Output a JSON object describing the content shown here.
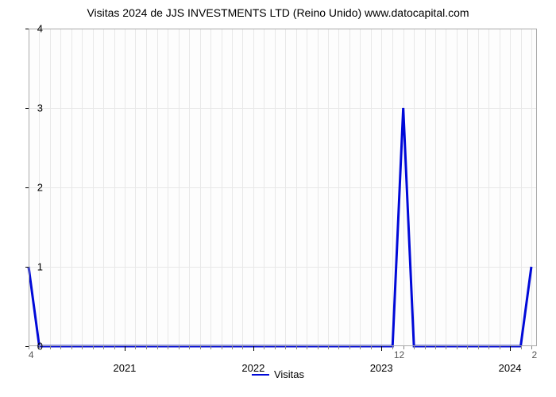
{
  "chart": {
    "type": "line",
    "title": "Visitas 2024 de JJS INVESTMENTS LTD (Reino Unido) www.datocapital.com",
    "title_fontsize": 14,
    "title_color": "#000000",
    "background_color": "#ffffff",
    "plot_background_color": "#fdfdfd",
    "grid_color": "#e8e8e8",
    "border_color": "#aaaaaa",
    "line_color": "#0009d8",
    "line_width": 3,
    "y_axis": {
      "min": 0,
      "max": 4,
      "ticks": [
        0,
        1,
        2,
        3,
        4
      ],
      "tick_fontsize": 13,
      "tick_color": "#000000"
    },
    "x_axis": {
      "minor_labels": [
        "4",
        "12",
        "2"
      ],
      "minor_positions_pct": [
        0.5,
        72.9,
        99.5
      ],
      "major_labels": [
        "2021",
        "2022",
        "2023",
        "2024"
      ],
      "major_positions_pct": [
        18.9,
        44.2,
        69.4,
        94.7
      ],
      "month_grid_positions_pct": [
        0.0,
        2.1,
        4.2,
        6.3,
        8.4,
        10.5,
        12.6,
        14.7,
        16.8,
        18.9,
        21.0,
        23.1,
        25.3,
        27.4,
        29.5,
        31.6,
        33.7,
        35.8,
        37.9,
        40.0,
        42.1,
        44.2,
        46.3,
        48.4,
        50.5,
        52.6,
        54.7,
        56.8,
        58.9,
        61.0,
        63.1,
        65.2,
        67.3,
        69.4,
        71.6,
        73.7,
        75.8,
        77.9,
        80.0,
        82.1,
        84.2,
        86.3,
        88.4,
        90.5,
        92.6,
        94.7,
        96.8,
        98.9
      ],
      "minor_tick_color": "#555555",
      "minor_tick_fontsize": 12
    },
    "series": [
      {
        "name": "Visitas",
        "color": "#0009d8",
        "points_x_pct": [
          0.0,
          2.1,
          4.2,
          71.6,
          73.7,
          75.8,
          96.8,
          98.9
        ],
        "points_y": [
          1.0,
          0.0,
          0.0,
          0.0,
          3.0,
          0.0,
          0.0,
          1.0
        ]
      }
    ],
    "legend": {
      "label": "Visitas",
      "color": "#0009d8",
      "fontsize": 13
    }
  }
}
